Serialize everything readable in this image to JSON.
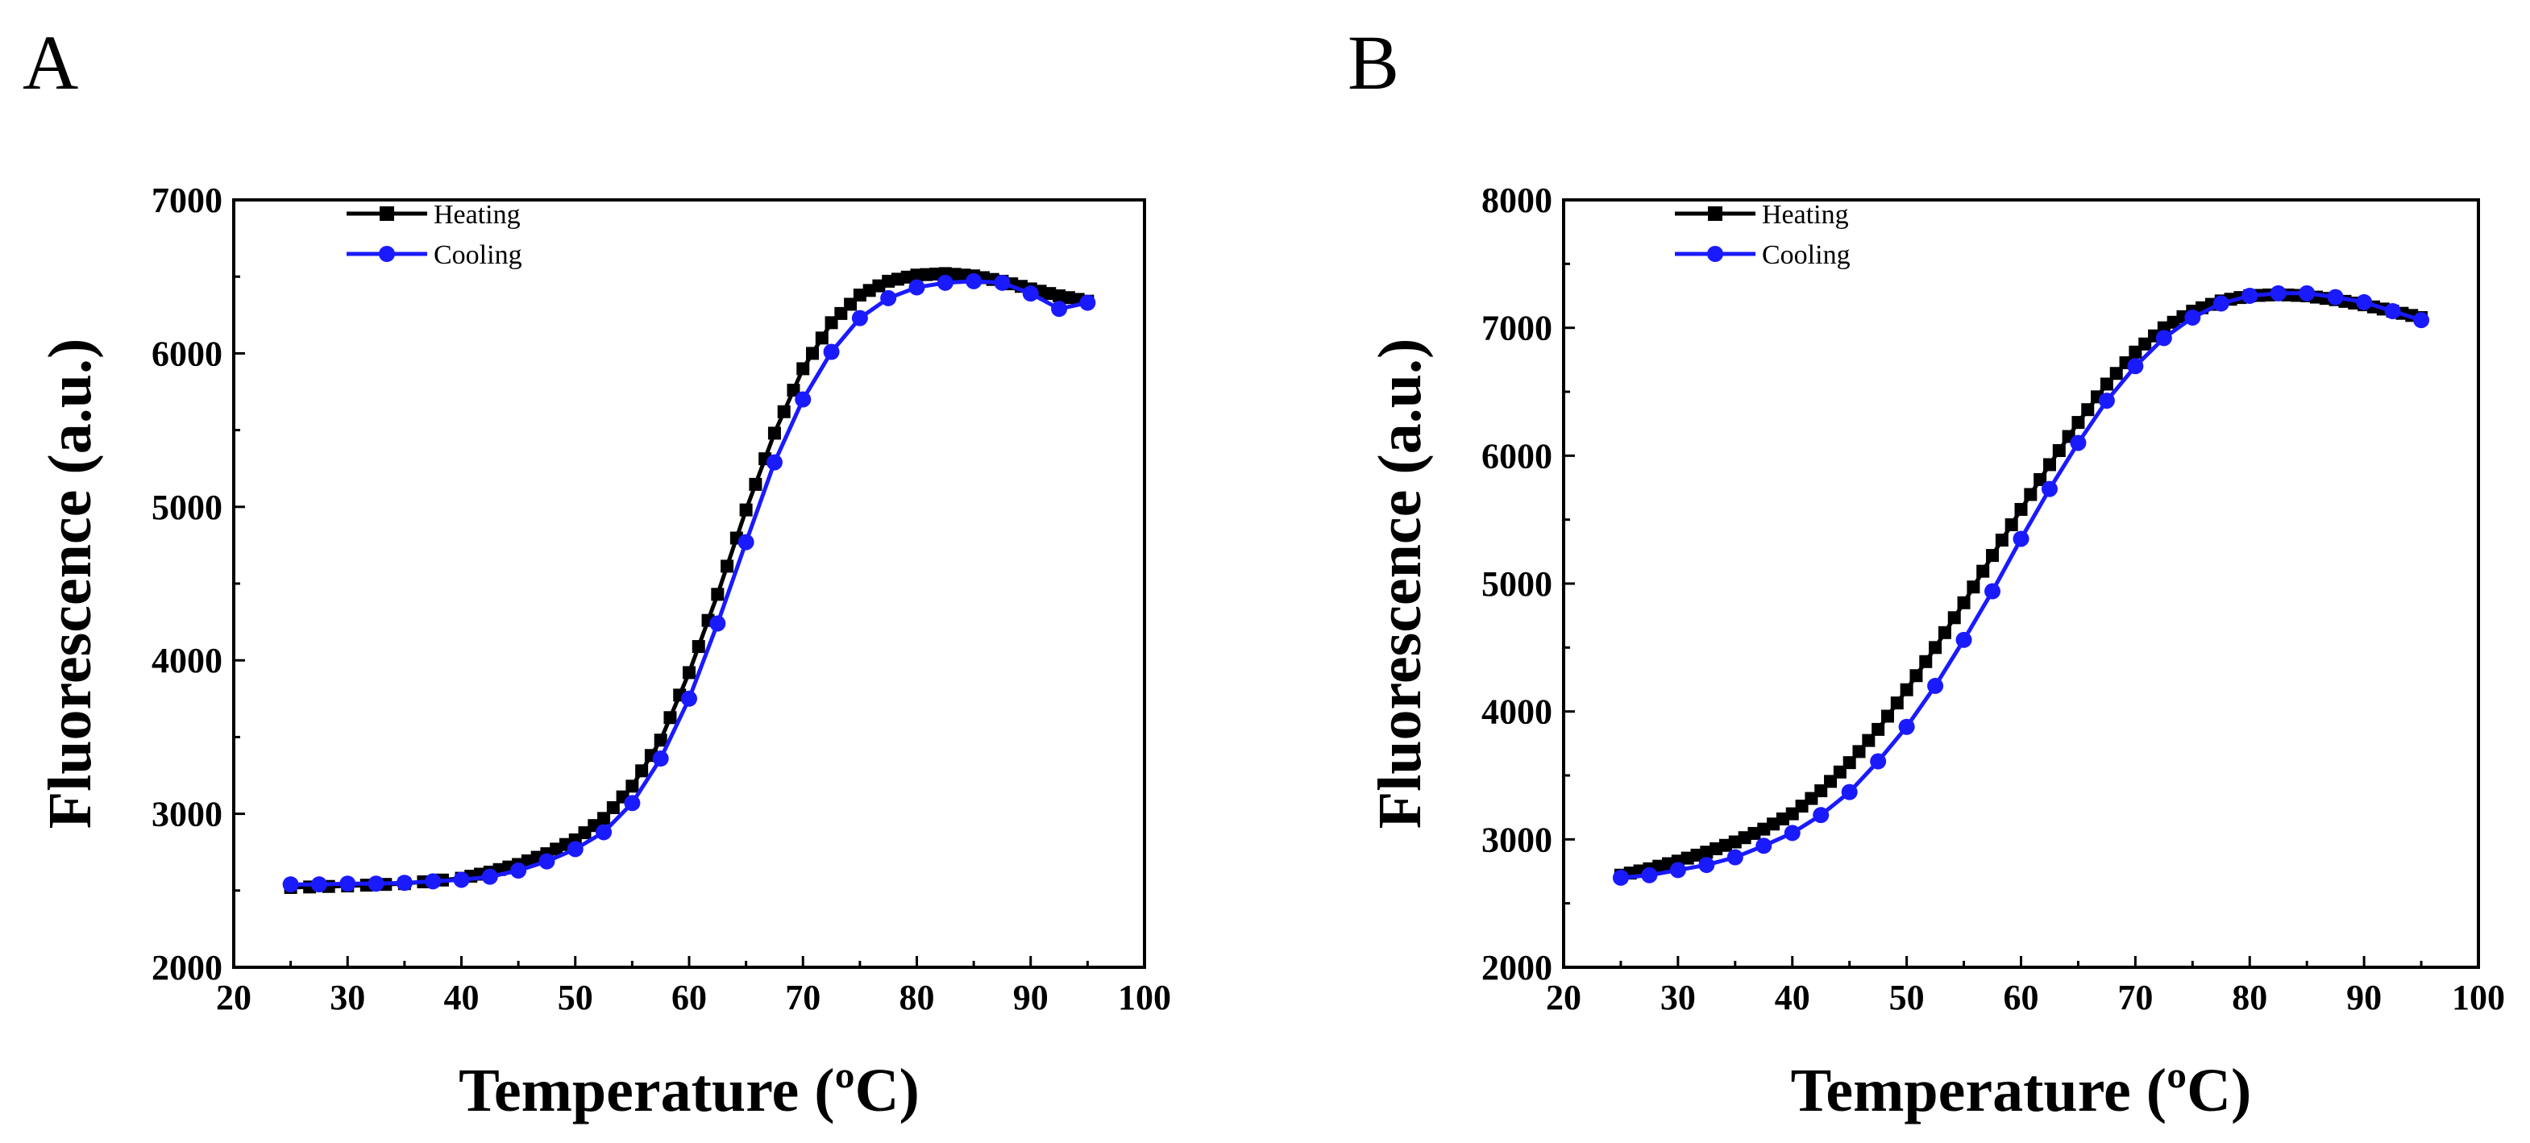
{
  "chart_data": [
    {
      "panel_label": "A",
      "type": "line",
      "xlabel": "Temperature (ºC)",
      "ylabel": "Fluorescence (a.u.)",
      "xlim": [
        20,
        100
      ],
      "ylim": [
        2000,
        7000
      ],
      "xticks": [
        20,
        30,
        40,
        50,
        60,
        70,
        80,
        90,
        100
      ],
      "yticks": [
        2000,
        3000,
        4000,
        5000,
        6000,
        7000
      ],
      "legend_position": "top-left",
      "series": [
        {
          "name": "Heating",
          "color": "#000000",
          "marker": "square",
          "x": [
            25,
            30,
            35,
            40,
            42.5,
            45,
            47.5,
            50,
            52.5,
            55,
            57.5,
            60,
            62.5,
            65,
            67.5,
            70,
            72.5,
            75,
            77.5,
            80,
            82.5,
            85,
            87.5,
            90,
            92.5,
            95
          ],
          "y": [
            2520,
            2530,
            2545,
            2580,
            2620,
            2670,
            2740,
            2830,
            2970,
            3180,
            3480,
            3920,
            4430,
            4980,
            5480,
            5900,
            6200,
            6380,
            6470,
            6510,
            6520,
            6505,
            6470,
            6420,
            6375,
            6340
          ]
        },
        {
          "name": "Cooling",
          "color": "#1a1aff",
          "marker": "circle",
          "x": [
            25,
            27.5,
            30,
            32.5,
            35,
            37.5,
            40,
            42.5,
            45,
            47.5,
            50,
            52.5,
            55,
            57.5,
            60,
            62.5,
            65,
            67.5,
            70,
            72.5,
            75,
            77.5,
            80,
            82.5,
            85,
            87.5,
            90,
            92.5,
            95
          ],
          "y": [
            2540,
            2540,
            2545,
            2545,
            2550,
            2560,
            2570,
            2590,
            2630,
            2690,
            2770,
            2880,
            3070,
            3360,
            3750,
            4240,
            4770,
            5290,
            5700,
            6010,
            6230,
            6360,
            6430,
            6460,
            6470,
            6460,
            6390,
            6290,
            6330
          ]
        }
      ]
    },
    {
      "panel_label": "B",
      "type": "line",
      "xlabel": "Temperature (ºC)",
      "ylabel": "Fluorescence (a.u.)",
      "xlim": [
        20,
        100
      ],
      "ylim": [
        2000,
        8000
      ],
      "xticks": [
        20,
        30,
        40,
        50,
        60,
        70,
        80,
        90,
        100
      ],
      "yticks": [
        2000,
        3000,
        4000,
        5000,
        6000,
        7000,
        8000
      ],
      "legend_position": "top-left",
      "series": [
        {
          "name": "Heating",
          "color": "#000000",
          "marker": "square",
          "x": [
            25,
            27.5,
            30,
            32.5,
            35,
            37.5,
            40,
            42.5,
            45,
            47.5,
            50,
            52.5,
            55,
            57.5,
            60,
            62.5,
            65,
            67.5,
            70,
            72.5,
            75,
            77.5,
            80,
            82.5,
            85,
            87.5,
            90,
            92.5,
            95
          ],
          "y": [
            2720,
            2770,
            2830,
            2900,
            2980,
            3080,
            3200,
            3380,
            3600,
            3860,
            4170,
            4500,
            4850,
            5220,
            5580,
            5930,
            6260,
            6560,
            6810,
            7000,
            7130,
            7210,
            7250,
            7260,
            7250,
            7220,
            7180,
            7130,
            7080
          ]
        },
        {
          "name": "Cooling",
          "color": "#1a1aff",
          "marker": "circle",
          "x": [
            25,
            27.5,
            30,
            32.5,
            35,
            37.5,
            40,
            42.5,
            45,
            47.5,
            50,
            52.5,
            55,
            57.5,
            60,
            62.5,
            65,
            67.5,
            70,
            72.5,
            75,
            77.5,
            80,
            82.5,
            85,
            87.5,
            90,
            92.5,
            95
          ],
          "y": [
            2700,
            2720,
            2760,
            2800,
            2860,
            2950,
            3050,
            3190,
            3370,
            3610,
            3880,
            4200,
            4560,
            4940,
            5350,
            5740,
            6100,
            6430,
            6700,
            6920,
            7080,
            7190,
            7250,
            7270,
            7270,
            7240,
            7200,
            7130,
            7060
          ]
        }
      ]
    }
  ]
}
